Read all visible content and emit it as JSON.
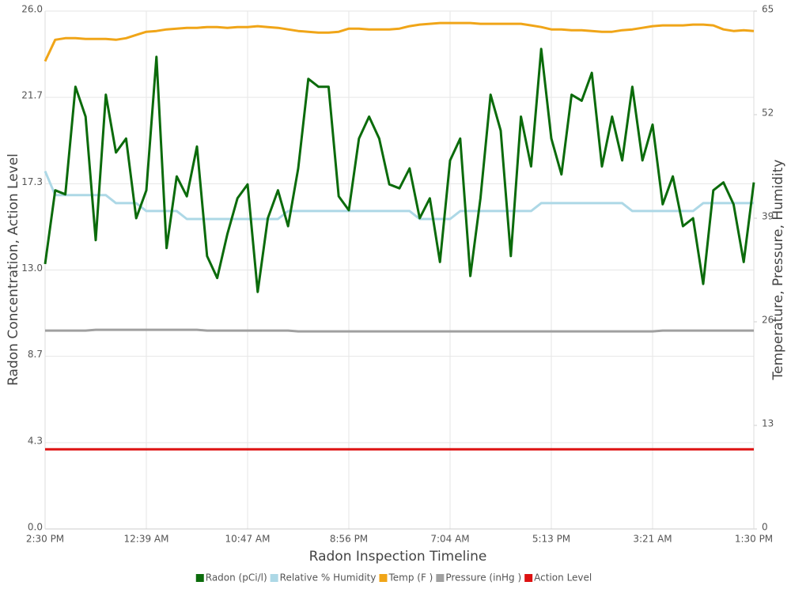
{
  "chart_data": {
    "type": "line",
    "y_label": "Radon Concentration, Action Level",
    "y2_label": "Temperature, Pressure, Humidity",
    "x_label": "Radon Inspection Timeline",
    "categories": [
      "2:30 PM",
      null,
      null,
      null,
      null,
      null,
      null,
      null,
      null,
      null,
      "12:39 AM",
      null,
      null,
      null,
      null,
      null,
      null,
      null,
      null,
      null,
      "10:47 AM",
      null,
      null,
      null,
      null,
      null,
      null,
      null,
      null,
      null,
      "8:56 PM",
      null,
      null,
      null,
      null,
      null,
      null,
      null,
      null,
      null,
      "7:04 AM",
      null,
      null,
      null,
      null,
      null,
      null,
      null,
      null,
      null,
      "5:13 PM",
      null,
      null,
      null,
      null,
      null,
      null,
      null,
      null,
      null,
      "3:21 AM",
      null,
      null,
      null,
      null,
      null,
      null,
      null,
      null,
      null,
      "1:30 PM"
    ],
    "ylim": [
      0,
      26
    ],
    "yticks": [
      {
        "value": 0,
        "label": "0.0"
      },
      {
        "value": 4.333,
        "label": "4.3"
      },
      {
        "value": 8.667,
        "label": "8.7"
      },
      {
        "value": 13,
        "label": "13.0"
      },
      {
        "value": 17.333,
        "label": "17.3"
      },
      {
        "value": 21.667,
        "label": "21.7"
      },
      {
        "value": 26,
        "label": "26.0"
      }
    ],
    "y2lim": [
      0,
      65
    ],
    "y2ticks": [
      0,
      13,
      26,
      39,
      52,
      65
    ],
    "grid": true,
    "legend": "bottom",
    "series": [
      {
        "name": "Radon (pCi/l)",
        "color": "#0b6b0b",
        "values": [
          13.3,
          17.0,
          16.8,
          22.2,
          20.7,
          14.5,
          21.8,
          18.9,
          19.6,
          15.6,
          17.0,
          23.7,
          14.1,
          17.7,
          16.7,
          19.2,
          13.7,
          12.6,
          14.8,
          16.6,
          17.3,
          11.9,
          15.6,
          17.0,
          15.2,
          18.1,
          22.6,
          22.2,
          22.2,
          16.7,
          16.0,
          19.6,
          20.7,
          19.6,
          17.3,
          17.1,
          18.1,
          15.6,
          16.6,
          13.4,
          18.5,
          19.6,
          12.7,
          16.6,
          21.8,
          20.0,
          13.7,
          20.7,
          18.2,
          24.1,
          19.6,
          17.8,
          21.8,
          21.5,
          22.9,
          18.2,
          20.7,
          18.5,
          22.2,
          18.5,
          20.3,
          16.3,
          17.7,
          15.2,
          15.6,
          12.3,
          17.0,
          17.4,
          16.3,
          13.4,
          17.4
        ]
      },
      {
        "name": "Relative % Humidity",
        "color": "#add8e6",
        "axis": "y2",
        "values": [
          44.9,
          41.9,
          41.9,
          41.9,
          41.9,
          41.9,
          41.9,
          40.9,
          40.9,
          40.9,
          39.9,
          39.9,
          39.9,
          39.9,
          38.9,
          38.9,
          38.9,
          38.9,
          38.9,
          38.9,
          38.9,
          38.9,
          38.9,
          38.9,
          39.9,
          39.9,
          39.9,
          39.9,
          39.9,
          39.9,
          39.9,
          39.9,
          39.9,
          39.9,
          39.9,
          39.9,
          39.9,
          38.9,
          38.9,
          38.9,
          38.9,
          39.9,
          39.9,
          39.9,
          39.9,
          39.9,
          39.9,
          39.9,
          39.9,
          40.9,
          40.9,
          40.9,
          40.9,
          40.9,
          40.9,
          40.9,
          40.9,
          40.9,
          39.9,
          39.9,
          39.9,
          39.9,
          39.9,
          39.9,
          39.9,
          40.9,
          40.9,
          40.9,
          40.9,
          40.9,
          40.9
        ]
      },
      {
        "name": "Temp (F )",
        "color": "#f0a518",
        "axis": "y2",
        "values": [
          58.7,
          61.4,
          61.6,
          61.6,
          61.5,
          61.5,
          61.5,
          61.4,
          61.6,
          62.0,
          62.4,
          62.5,
          62.7,
          62.8,
          62.9,
          62.9,
          63.0,
          63.0,
          62.9,
          63.0,
          63.0,
          63.1,
          63.0,
          62.9,
          62.7,
          62.5,
          62.4,
          62.3,
          62.3,
          62.4,
          62.8,
          62.8,
          62.7,
          62.7,
          62.7,
          62.8,
          63.1,
          63.3,
          63.4,
          63.5,
          63.5,
          63.5,
          63.5,
          63.4,
          63.4,
          63.4,
          63.4,
          63.4,
          63.2,
          63.0,
          62.7,
          62.7,
          62.6,
          62.6,
          62.5,
          62.4,
          62.4,
          62.6,
          62.7,
          62.9,
          63.1,
          63.2,
          63.2,
          63.2,
          63.3,
          63.3,
          63.2,
          62.7,
          62.5,
          62.6,
          62.5
        ]
      },
      {
        "name": "Pressure (inHg )",
        "color": "#a0a0a0",
        "axis": "y2",
        "values": [
          24.9,
          24.9,
          24.9,
          24.9,
          24.9,
          25.0,
          25.0,
          25.0,
          25.0,
          25.0,
          25.0,
          25.0,
          25.0,
          25.0,
          25.0,
          25.0,
          24.9,
          24.9,
          24.9,
          24.9,
          24.9,
          24.9,
          24.9,
          24.9,
          24.9,
          24.8,
          24.8,
          24.8,
          24.8,
          24.8,
          24.8,
          24.8,
          24.8,
          24.8,
          24.8,
          24.8,
          24.8,
          24.8,
          24.8,
          24.8,
          24.8,
          24.8,
          24.8,
          24.8,
          24.8,
          24.8,
          24.8,
          24.8,
          24.8,
          24.8,
          24.8,
          24.8,
          24.8,
          24.8,
          24.8,
          24.8,
          24.8,
          24.8,
          24.8,
          24.8,
          24.8,
          24.9,
          24.9,
          24.9,
          24.9,
          24.9,
          24.9,
          24.9,
          24.9,
          24.9,
          24.9
        ]
      },
      {
        "name": "Action Level",
        "color": "#dd1111",
        "values": [
          4.0,
          4.0,
          4.0,
          4.0,
          4.0,
          4.0,
          4.0,
          4.0,
          4.0,
          4.0,
          4.0,
          4.0,
          4.0,
          4.0,
          4.0,
          4.0,
          4.0,
          4.0,
          4.0,
          4.0,
          4.0,
          4.0,
          4.0,
          4.0,
          4.0,
          4.0,
          4.0,
          4.0,
          4.0,
          4.0,
          4.0,
          4.0,
          4.0,
          4.0,
          4.0,
          4.0,
          4.0,
          4.0,
          4.0,
          4.0,
          4.0,
          4.0,
          4.0,
          4.0,
          4.0,
          4.0,
          4.0,
          4.0,
          4.0,
          4.0,
          4.0,
          4.0,
          4.0,
          4.0,
          4.0,
          4.0,
          4.0,
          4.0,
          4.0,
          4.0,
          4.0,
          4.0,
          4.0,
          4.0,
          4.0,
          4.0,
          4.0,
          4.0,
          4.0,
          4.0,
          4.0
        ]
      }
    ]
  }
}
